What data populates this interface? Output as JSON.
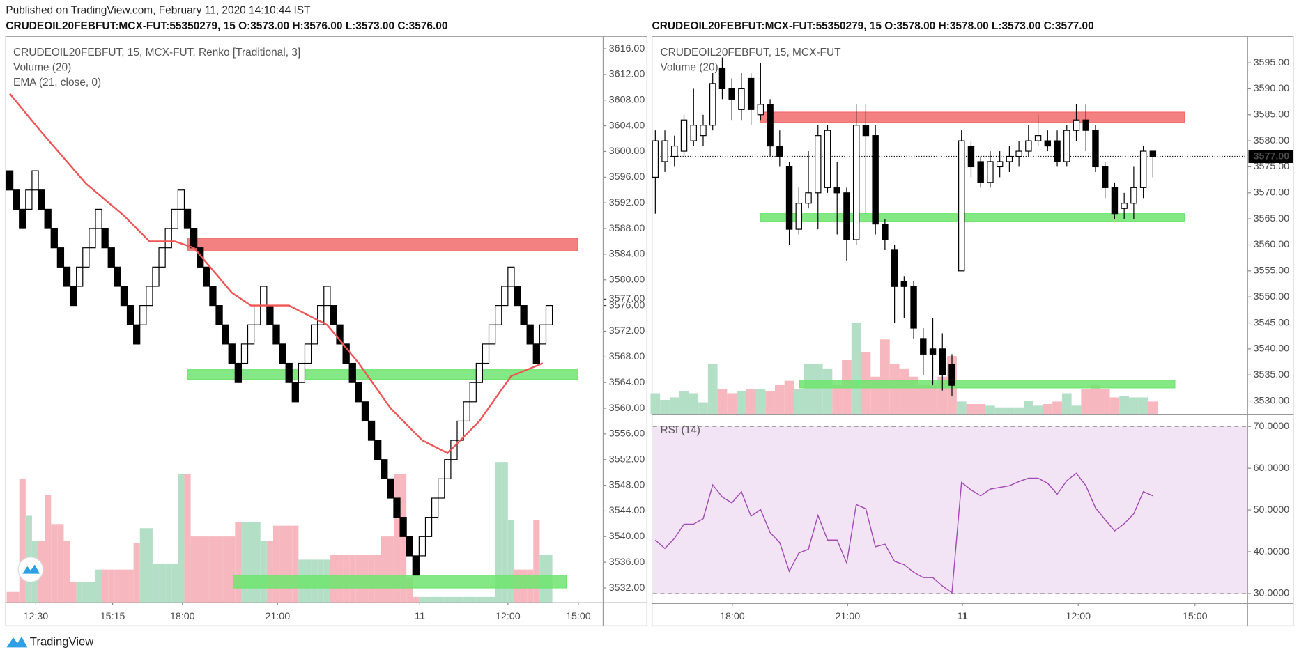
{
  "published": "Published on TradingView.com, February 11, 2020 14:10:44 IST",
  "brand": "TradingView",
  "chart_data": [
    {
      "type": "renko",
      "header": "CRUDEOIL20FEBFUT:MCX-FUT:55350279, 15 O:3573.00 H:3576.00 L:3573.00 C:3576.00",
      "title": "CRUDEOIL20FEBFUT, 15, MCX-FUT, Renko [Traditional, 3]",
      "up_color": "#ffffff",
      "down_color": "#000000",
      "edge_color": "#000000",
      "open": [
        3597,
        3594,
        3591,
        3591,
        3594,
        3594,
        3591,
        3588,
        3585,
        3582,
        3579,
        3579,
        3582,
        3585,
        3588,
        3588,
        3585,
        3582,
        3579,
        3576,
        3573,
        3573,
        3576,
        3579,
        3582,
        3585,
        3588,
        3591,
        3591,
        3588,
        3585,
        3582,
        3579,
        3576,
        3573,
        3570,
        3567,
        3567,
        3570,
        3573,
        3576,
        3576,
        3573,
        3570,
        3567,
        3564,
        3564,
        3567,
        3570,
        3573,
        3576,
        3576,
        3573,
        3570,
        3567,
        3564,
        3561,
        3558,
        3555,
        3552,
        3549,
        3546,
        3543,
        3540,
        3537,
        3537,
        3540,
        3543,
        3546,
        3549,
        3552,
        3555,
        3558,
        3561,
        3564,
        3567,
        3570,
        3573,
        3576,
        3579,
        3579,
        3576,
        3573,
        3570,
        3570,
        3573
      ],
      "close": [
        3594,
        3591,
        3588,
        3594,
        3597,
        3591,
        3588,
        3585,
        3582,
        3579,
        3576,
        3582,
        3585,
        3588,
        3591,
        3585,
        3582,
        3579,
        3576,
        3573,
        3570,
        3576,
        3579,
        3582,
        3585,
        3588,
        3591,
        3594,
        3588,
        3585,
        3582,
        3579,
        3576,
        3573,
        3570,
        3567,
        3564,
        3570,
        3573,
        3576,
        3579,
        3573,
        3570,
        3567,
        3564,
        3561,
        3567,
        3570,
        3573,
        3576,
        3579,
        3573,
        3570,
        3567,
        3564,
        3561,
        3558,
        3555,
        3552,
        3549,
        3546,
        3543,
        3540,
        3537,
        3534,
        3540,
        3543,
        3546,
        3549,
        3552,
        3555,
        3558,
        3561,
        3564,
        3567,
        3570,
        3573,
        3576,
        3579,
        3582,
        3576,
        3573,
        3570,
        3567,
        3573,
        3576
      ],
      "volume": {
        "name": "Volume (20)",
        "up_color": "#b3dfc7",
        "down_color": "#f6b8be",
        "values": [
          13,
          13,
          150,
          105,
          75,
          75,
          130,
          95,
          95,
          75,
          25,
          25,
          25,
          25,
          40,
          40,
          40,
          40,
          40,
          40,
          72,
          90,
          90,
          47,
          47,
          47,
          47,
          155,
          155,
          80,
          80,
          80,
          80,
          80,
          80,
          80,
          97,
          97,
          97,
          97,
          75,
          75,
          93,
          93,
          93,
          93,
          52,
          52,
          52,
          52,
          52,
          58,
          58,
          58,
          58,
          58,
          58,
          58,
          58,
          80,
          80,
          155,
          155,
          30,
          7,
          7,
          7,
          7,
          7,
          7,
          7,
          7,
          7,
          7,
          7,
          7,
          7,
          170,
          170,
          100,
          40,
          40,
          40,
          100,
          58,
          58
        ]
      },
      "ema": {
        "name": "EMA (21, close, 0)",
        "color": "#f05454",
        "x": [
          0,
          5,
          12,
          18,
          22,
          26,
          29,
          35,
          38,
          44,
          50,
          55,
          60,
          65,
          69,
          74,
          79,
          84
        ],
        "values": [
          3609,
          3603,
          3595,
          3590,
          3586,
          3586,
          3585,
          3578,
          3576,
          3576,
          3573,
          3567,
          3560,
          3555,
          3553,
          3558,
          3565,
          3567
        ]
      },
      "zones": [
        {
          "color": "#f26b6b",
          "low": 3584.5,
          "high": 3586.5,
          "start": 28,
          "end": 89.5
        },
        {
          "color": "#6fe56f",
          "low": 3564.5,
          "high": 3566,
          "start": 28,
          "end": 89.5
        },
        {
          "color": "#6fe56f",
          "low": 3532,
          "high": 3534,
          "start": 35.2,
          "end": 87.7
        }
      ],
      "xlim": [
        -0.5,
        93.5
      ],
      "xticks": [
        {
          "value": 4.1,
          "label": "12:30"
        },
        {
          "value": 16.2,
          "label": "15:15"
        },
        {
          "value": 27.2,
          "label": "18:00"
        },
        {
          "value": 42.2,
          "label": "21:00"
        },
        {
          "value": 64.6,
          "label": "11",
          "bold": true
        },
        {
          "value": 78.5,
          "label": "12:00"
        },
        {
          "value": 89.6,
          "label": "15:00"
        }
      ],
      "ylim": [
        3529.7,
        3617.8
      ],
      "yticks": [
        {
          "value": 3532,
          "label": "3532.00"
        },
        {
          "value": 3536,
          "label": "3536.00"
        },
        {
          "value": 3540,
          "label": "3540.00"
        },
        {
          "value": 3544,
          "label": "3544.00"
        },
        {
          "value": 3548,
          "label": "3548.00"
        },
        {
          "value": 3552,
          "label": "3552.00"
        },
        {
          "value": 3556,
          "label": "3556.00"
        },
        {
          "value": 3560,
          "label": "3560.00"
        },
        {
          "value": 3564,
          "label": "3564.00"
        },
        {
          "value": 3568,
          "label": "3568.00"
        },
        {
          "value": 3572,
          "label": "3572.00"
        },
        {
          "value": 3580,
          "label": "3580.00"
        },
        {
          "value": 3584,
          "label": "3584.00"
        },
        {
          "value": 3588,
          "label": "3588.00"
        },
        {
          "value": 3592,
          "label": "3592.00"
        },
        {
          "value": 3596,
          "label": "3596.00"
        },
        {
          "value": 3600,
          "label": "3600.00"
        },
        {
          "value": 3604,
          "label": "3604.00"
        },
        {
          "value": 3608,
          "label": "3608.00"
        },
        {
          "value": 3612,
          "label": "3612.00"
        },
        {
          "value": 3616,
          "label": "3616.00"
        }
      ],
      "price_tags": [
        {
          "value": 3577,
          "label": "3577.00"
        },
        {
          "value": 3576,
          "label": "3576.00"
        }
      ]
    },
    {
      "type": "candlestick",
      "header": "CRUDEOIL20FEBFUT:MCX-FUT:55350279, 15 O:3578.00 H:3578.00 L:3573.00 C:3577.00",
      "title": "CRUDEOIL20FEBFUT, 15, MCX-FUT",
      "up_color": "#ffffff",
      "down_color": "#000000",
      "edge_color": "#000000",
      "open": [
        3573,
        3576,
        3577,
        3578,
        3580,
        3581,
        3583,
        3594,
        3590,
        3586,
        3592,
        3585,
        3587,
        3579,
        3575,
        3563,
        3568,
        3570,
        3571,
        3571,
        3570,
        3561,
        3583,
        3581,
        3564,
        3559,
        3553,
        3552,
        3542,
        3540,
        3540,
        3537,
        3555,
        3579,
        3576,
        3572,
        3575,
        3576,
        3577,
        3578,
        3580,
        3580,
        3580,
        3576,
        3582,
        3584,
        3582,
        3575,
        3571,
        3567,
        3568,
        3571,
        3578
      ],
      "high": [
        3582,
        3582,
        3581,
        3585,
        3590,
        3585,
        3593,
        3596,
        3592,
        3593,
        3593,
        3595,
        3588,
        3582,
        3576,
        3571,
        3578,
        3583,
        3583,
        3576,
        3571,
        3587,
        3587,
        3583,
        3565,
        3560,
        3554,
        3553,
        3544,
        3546,
        3543,
        3539,
        3582,
        3580,
        3577,
        3578,
        3578,
        3579,
        3580,
        3583,
        3585,
        3582,
        3582,
        3583,
        3587,
        3587,
        3583,
        3576,
        3572,
        3570,
        3575,
        3579,
        3578
      ],
      "low": [
        3566,
        3574,
        3575,
        3577,
        3579,
        3579,
        3582,
        3588,
        3584,
        3584,
        3583,
        3584,
        3577,
        3575,
        3560,
        3562,
        3567,
        3563,
        3570,
        3562,
        3557,
        3560,
        3566,
        3562,
        3559,
        3545,
        3546,
        3542,
        3535,
        3533,
        3532,
        3531,
        3555,
        3573,
        3571,
        3571,
        3573,
        3574,
        3575,
        3577,
        3579,
        3578,
        3575,
        3575,
        3580,
        3578,
        3574,
        3569,
        3565,
        3565,
        3565,
        3569,
        3573
      ],
      "close": [
        3580,
        3580,
        3579,
        3584,
        3583,
        3583,
        3591,
        3590,
        3588,
        3590,
        3586,
        3587,
        3579,
        3577,
        3563,
        3568,
        3570,
        3581,
        3582,
        3570,
        3561,
        3583,
        3581,
        3564,
        3561,
        3552,
        3552,
        3544,
        3539,
        3539,
        3535,
        3533,
        3580,
        3575,
        3572,
        3576,
        3576,
        3577,
        3578,
        3580,
        3581,
        3579,
        3576,
        3582,
        3584,
        3582,
        3575,
        3571,
        3566,
        3568,
        3571,
        3578,
        3577
      ],
      "volume": {
        "name": "Volume (20)",
        "up_color": "#b3dfc7",
        "down_color": "#f6b8be",
        "values": [
          25,
          17,
          20,
          28,
          25,
          14,
          60,
          30,
          25,
          28,
          30,
          30,
          28,
          35,
          40,
          30,
          60,
          60,
          55,
          35,
          65,
          110,
          75,
          45,
          90,
          60,
          55,
          45,
          35,
          35,
          45,
          70,
          15,
          12,
          12,
          10,
          8,
          8,
          8,
          16,
          10,
          12,
          15,
          25,
          10,
          30,
          35,
          30,
          20,
          22,
          20,
          20,
          15
        ]
      },
      "zones": [
        {
          "color": "#f26b6b",
          "low": 3583.5,
          "high": 3585.5,
          "start": 11,
          "end": 55.3
        },
        {
          "color": "#6fe56f",
          "low": 3564.5,
          "high": 3566,
          "start": 11,
          "end": 55.3
        },
        {
          "color": "#6fe56f",
          "low": 3532.5,
          "high": 3534,
          "start": 15.1,
          "end": 54.3
        }
      ],
      "xlim": [
        -0.26,
        61.9
      ],
      "xticks": [
        {
          "value": 8.05,
          "label": "18:00"
        },
        {
          "value": 20.1,
          "label": "21:00"
        },
        {
          "value": 32.1,
          "label": "11",
          "bold": true
        },
        {
          "value": 44.2,
          "label": "12:00"
        },
        {
          "value": 56.4,
          "label": "15:00"
        }
      ],
      "ylim": [
        3527.5,
        3599.9
      ],
      "yticks": [
        {
          "value": 3530,
          "label": "3530.00"
        },
        {
          "value": 3535,
          "label": "3535.00"
        },
        {
          "value": 3540,
          "label": "3540.00"
        },
        {
          "value": 3545,
          "label": "3545.00"
        },
        {
          "value": 3550,
          "label": "3550.00"
        },
        {
          "value": 3555,
          "label": "3555.00"
        },
        {
          "value": 3560,
          "label": "3560.00"
        },
        {
          "value": 3565,
          "label": "3565.00"
        },
        {
          "value": 3570,
          "label": "3570.00"
        },
        {
          "value": 3575,
          "label": "3575.00"
        },
        {
          "value": 3580,
          "label": "3580.00"
        },
        {
          "value": 3585,
          "label": "3585.00"
        },
        {
          "value": 3590,
          "label": "3590.00"
        },
        {
          "value": 3595,
          "label": "3595.00"
        }
      ],
      "price_tags": [
        {
          "value": 3577,
          "label": "3577.00",
          "color": "#000000",
          "dotted_line": true
        }
      ],
      "rsi": {
        "name": "RSI (14)",
        "color": "#a24bb5",
        "band_color": "#f2e4f4",
        "values": [
          42.8,
          40.8,
          43.2,
          46.6,
          46.6,
          47.9,
          56,
          53.1,
          51.7,
          54.4,
          48.5,
          50.1,
          44.6,
          42.2,
          35.3,
          39.7,
          40.6,
          48.7,
          42.8,
          42.8,
          37.3,
          51.3,
          50.3,
          41.2,
          41.8,
          37.7,
          36.9,
          35.1,
          33.8,
          33.8,
          31.8,
          30.2,
          56.6,
          54.8,
          53.4,
          55,
          55.4,
          55.8,
          56.8,
          57.6,
          57.6,
          56.4,
          53.8,
          57,
          58.8,
          55.8,
          50.5,
          47.7,
          45,
          46.7,
          49.1,
          54.4,
          53.4
        ],
        "band": [
          30,
          70
        ],
        "ylim": [
          27.6,
          72.6
        ],
        "yticks": [
          {
            "value": 30,
            "label": "30.0000"
          },
          {
            "value": 40,
            "label": "40.0000"
          },
          {
            "value": 50,
            "label": "50.0000"
          },
          {
            "value": 60,
            "label": "60.0000"
          },
          {
            "value": 70,
            "label": "70.0000"
          }
        ]
      }
    }
  ]
}
